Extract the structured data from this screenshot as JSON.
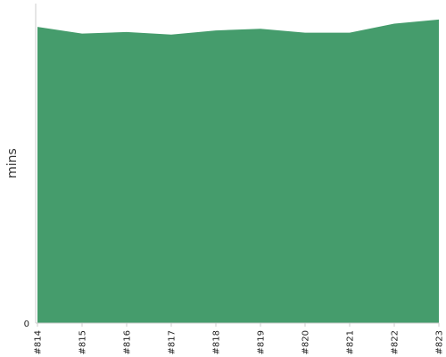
{
  "chart_data": {
    "type": "area",
    "x": [
      "#814",
      "#815",
      "#816",
      "#817",
      "#818",
      "#819",
      "#820",
      "#821",
      "#822",
      "#823"
    ],
    "series": [
      {
        "values": [
          92.7,
          90.6,
          91.1,
          90.3,
          91.6,
          92.1,
          90.9,
          90.9,
          93.7,
          95.0
        ]
      }
    ],
    "ylabel": "mins",
    "xlabel": "",
    "title": "",
    "y_tick_labels": [
      "0"
    ],
    "ylim": [
      0,
      100
    ],
    "grid": false,
    "colors": {
      "fill": "#459c6c",
      "axis": "#cccccc"
    }
  }
}
